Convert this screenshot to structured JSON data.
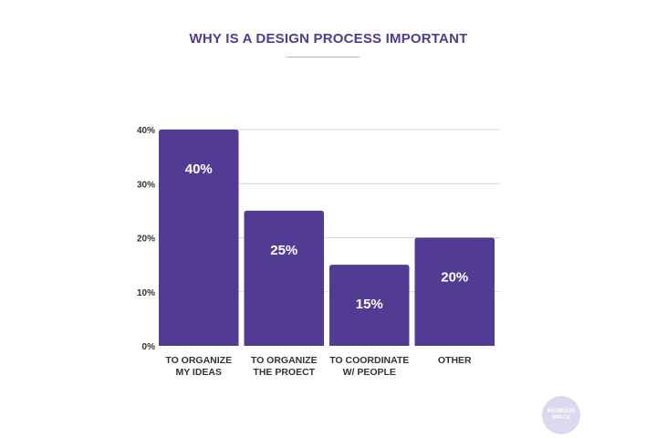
{
  "colors": {
    "bar": "#523b93",
    "title": "#523b93",
    "axis_text": "#333333",
    "grid": "#d7d7d7",
    "label_on_bar": "#ffffff"
  },
  "logo": {
    "text": "HARBOUR\nSPACE"
  },
  "chart_data": {
    "type": "bar",
    "title": "WHY IS A DESIGN PROCESS IMPORTANT",
    "categories": [
      [
        "TO ORGANIZE",
        "MY IDEAS"
      ],
      [
        "TO ORGANIZE",
        "THE PROECT"
      ],
      [
        "TO COORDINATE",
        "W/ PEOPLE"
      ],
      [
        "OTHER"
      ]
    ],
    "values": [
      40,
      25,
      15,
      20
    ],
    "data_labels": [
      "40%",
      "25%",
      "15%",
      "20%"
    ],
    "yticks": [
      0,
      10,
      20,
      30,
      40
    ],
    "ytick_labels": [
      "0%",
      "10%",
      "20%",
      "30%",
      "40%"
    ],
    "ylim": [
      0,
      40
    ],
    "grid": true,
    "legend": "none"
  }
}
